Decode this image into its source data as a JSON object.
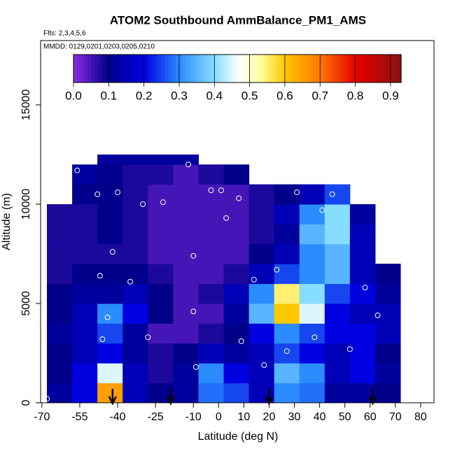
{
  "chart_data": {
    "type": "heatmap",
    "title": "ATOM2 Southbound AmmBalance_PM1_AMS",
    "subtitle": "Flts: 2,3,4,5,6",
    "annotation": "MMDD: 0129,0201,0203,0205,0210",
    "xlabel": "Latitude (deg N)",
    "ylabel": "Altitude (m)",
    "xlim": [
      -70.5,
      85.3
    ],
    "ylim": [
      0,
      18240
    ],
    "xticks": [
      -70,
      -55,
      -40,
      -25,
      -10,
      0,
      10,
      20,
      30,
      40,
      50,
      60,
      70,
      80
    ],
    "yticks": [
      0,
      5000,
      10000,
      15000
    ],
    "x_edges": [
      -68,
      -58,
      -48,
      -38,
      -28,
      -18,
      -8,
      2,
      12,
      22,
      32,
      42,
      52,
      62,
      72
    ],
    "y_edges": [
      0,
      1000,
      2000,
      3000,
      4000,
      5000,
      6000,
      7000,
      8000,
      9000,
      10000,
      11000,
      12000,
      12500
    ],
    "z": [
      [
        0.12,
        0.2,
        0.65,
        0.15,
        0.1,
        0.12,
        0.28,
        0.25,
        0.15,
        0.3,
        0.28,
        0.12,
        0.12,
        0.1
      ],
      [
        0.1,
        0.2,
        0.45,
        0.15,
        0.08,
        0.12,
        0.3,
        0.2,
        0.15,
        0.35,
        0.3,
        0.15,
        0.2,
        0.12
      ],
      [
        0.1,
        0.15,
        0.2,
        0.12,
        0.08,
        0.1,
        0.15,
        0.12,
        0.15,
        0.25,
        0.2,
        0.15,
        0.2,
        0.1
      ],
      [
        0.12,
        0.15,
        0.25,
        0.12,
        0.05,
        0.05,
        0.08,
        0.1,
        0.2,
        0.3,
        0.25,
        0.2,
        0.2,
        0.15
      ],
      [
        0.1,
        0.15,
        0.3,
        0.2,
        0.1,
        0.05,
        0.05,
        0.12,
        0.35,
        0.6,
        0.45,
        0.2,
        0.15,
        0.15
      ],
      [
        0.1,
        0.12,
        0.12,
        0.15,
        0.1,
        0.05,
        0.08,
        0.15,
        0.3,
        0.55,
        0.4,
        0.25,
        0.2,
        0.12
      ],
      [
        0.08,
        0.1,
        0.1,
        0.1,
        0.08,
        0.05,
        0.05,
        0.08,
        0.15,
        0.25,
        0.3,
        0.35,
        0.15,
        0.1
      ],
      [
        0.08,
        0.08,
        0.08,
        0.08,
        0.05,
        0.05,
        0.05,
        0.05,
        0.1,
        0.15,
        0.3,
        0.35,
        0.15,
        null
      ],
      [
        0.08,
        0.08,
        0.1,
        0.08,
        0.05,
        0.05,
        0.05,
        0.05,
        0.08,
        0.12,
        0.35,
        0.4,
        0.15,
        null
      ],
      [
        0.08,
        0.08,
        0.1,
        0.08,
        0.05,
        0.05,
        0.05,
        0.05,
        0.08,
        0.15,
        0.3,
        0.4,
        0.12,
        null
      ],
      [
        null,
        0.1,
        0.1,
        0.08,
        0.05,
        0.05,
        0.05,
        0.05,
        0.08,
        0.1,
        0.15,
        0.25,
        null,
        null
      ],
      [
        null,
        0.12,
        0.1,
        0.08,
        0.08,
        0.05,
        0.08,
        0.1,
        null,
        null,
        null,
        null,
        null,
        null
      ],
      [
        null,
        null,
        0.12,
        0.12,
        0.12,
        0.12,
        null,
        null,
        null,
        null,
        null,
        null,
        null,
        null
      ]
    ],
    "clim": [
      0,
      0.93
    ],
    "cticks": [
      {
        "value": 0,
        "label": "0.0"
      },
      0.1,
      0.2,
      0.3,
      0.4,
      0.5,
      0.6,
      0.7,
      0.8,
      0.9
    ],
    "colorscale": [
      [
        0,
        "#8a2be2"
      ],
      [
        0.1,
        "#00008b"
      ],
      [
        0.2,
        "#0000e0"
      ],
      [
        0.3,
        "#2a8cff"
      ],
      [
        0.4,
        "#87ddff"
      ],
      [
        0.47,
        "#ffffff"
      ],
      [
        0.53,
        "#ffffa0"
      ],
      [
        0.6,
        "#ffc800"
      ],
      [
        0.7,
        "#ff7800"
      ],
      [
        0.8,
        "#e60000"
      ],
      [
        0.93,
        "#8b1010"
      ]
    ],
    "points": {
      "x": [
        -68,
        -56,
        -48,
        -47,
        -46,
        -44,
        -40,
        -35,
        -30,
        -22,
        -12,
        -10,
        -10,
        -9,
        -3,
        1,
        3,
        8,
        14,
        18,
        23,
        27,
        31,
        38,
        45,
        52,
        58,
        63,
        -42,
        -28,
        9,
        41
      ],
      "y": [
        200,
        11700,
        10500,
        6400,
        3200,
        4300,
        10600,
        6100,
        10000,
        10100,
        12000,
        7400,
        4600,
        1800,
        10700,
        10700,
        9300,
        10300,
        6200,
        1900,
        6700,
        2600,
        10600,
        3300,
        10500,
        2700,
        5800,
        4400,
        7600,
        3300,
        3100,
        9700
      ]
    },
    "arrows": [
      -42,
      -19,
      20,
      61
    ]
  }
}
